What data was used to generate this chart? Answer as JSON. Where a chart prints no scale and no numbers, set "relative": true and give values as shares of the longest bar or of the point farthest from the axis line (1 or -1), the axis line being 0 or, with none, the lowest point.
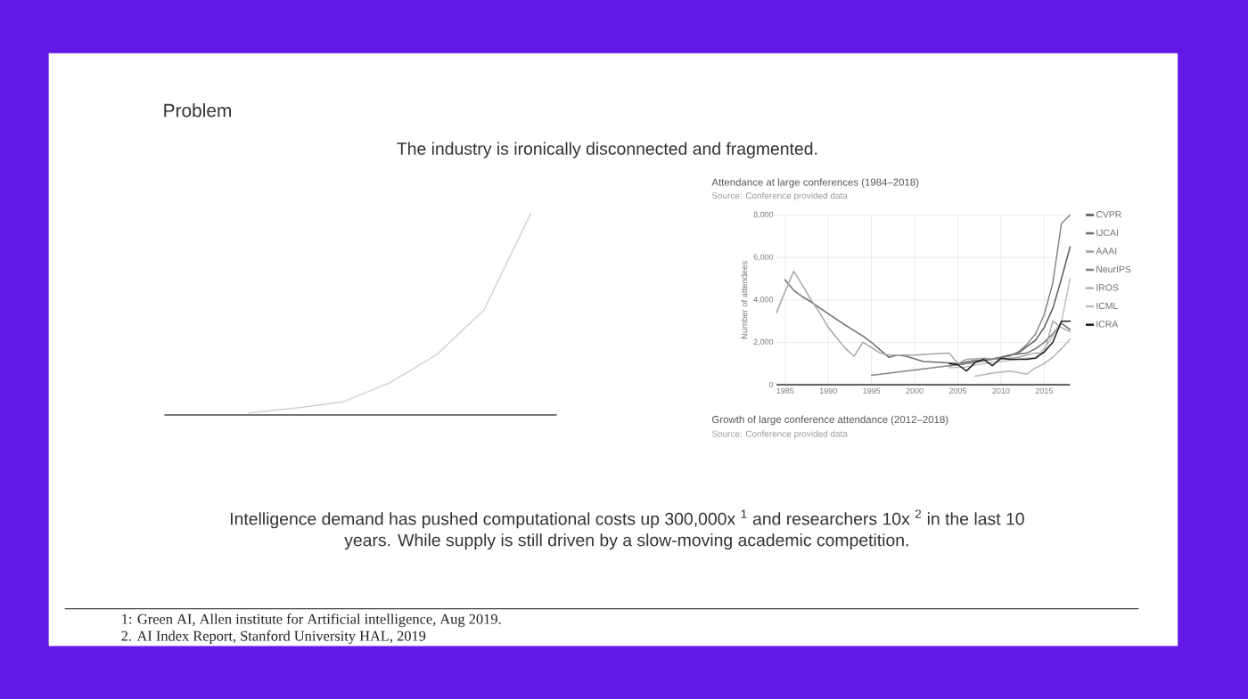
{
  "chart_data": [
    {
      "type": "other",
      "title": "Problem",
      "subtitle": "The industry is ironically disconnected and fragmented."
    },
    {
      "type": "line",
      "relative": true,
      "categories": [
        null,
        null,
        null,
        null,
        null,
        null,
        null,
        null
      ],
      "values": [
        null,
        0.01,
        0.035,
        0.065,
        0.16,
        0.3,
        0.52,
        1
      ],
      "color": "#d2d2d2"
    },
    {
      "type": "line",
      "title": "Attendance at large conferences (1984–2018)",
      "subtitle": "Source: Conference provided data",
      "ylabel": "Number of attendees",
      "xlim": [
        1984,
        2018
      ],
      "xticks": [
        1985,
        1990,
        1995,
        2000,
        2005,
        2010,
        2015
      ],
      "ylim": [
        0,
        8000
      ],
      "yticks": [
        0,
        {
          "value": 2000,
          "label": "2,000"
        },
        {
          "value": 4000,
          "label": "4,000"
        },
        {
          "value": 6000,
          "label": "6,000"
        },
        {
          "value": 8000,
          "label": "8,000"
        }
      ],
      "grid": true,
      "legend": "right",
      "series": [
        {
          "name": "CVPR",
          "color": "#595959",
          "x": [
            2004,
            2006,
            2008,
            2010,
            2012,
            2013,
            2014,
            2015,
            2016,
            2017,
            2018
          ],
          "values": [
            900,
            1000,
            1150,
            1300,
            1500,
            1800,
            2100,
            2700,
            3600,
            5000,
            6500
          ]
        },
        {
          "name": "IJCAI",
          "color": "#6e6e6e",
          "x": [
            1985,
            1986,
            1987,
            1988,
            1990,
            1992,
            1994,
            1995,
            1996,
            1997,
            1998,
            1999,
            2001,
            2003,
            2005,
            2007,
            2009,
            2011,
            2013,
            2014,
            2015,
            2016,
            2017,
            2018
          ],
          "values": [
            4950,
            4450,
            4150,
            3900,
            3350,
            2800,
            2300,
            2000,
            1650,
            1300,
            1400,
            1350,
            1100,
            1050,
            1000,
            1150,
            1200,
            1400,
            1500,
            1700,
            2000,
            2400,
            2900,
            2600
          ]
        },
        {
          "name": "AAAI",
          "color": "#a6a6a6",
          "x": [
            1984,
            1985,
            1986,
            1987,
            1988,
            1989,
            1990,
            1991,
            1992,
            1993,
            1994,
            1995,
            1996,
            1997,
            1998,
            2000,
            2002,
            2004,
            2005,
            2006,
            2008,
            2010,
            2012,
            2014,
            2015,
            2016,
            2017,
            2018
          ],
          "values": [
            3400,
            4400,
            5350,
            4700,
            4000,
            3400,
            2700,
            2200,
            1700,
            1350,
            2000,
            1750,
            1500,
            1400,
            1400,
            1400,
            1450,
            1500,
            1000,
            1200,
            1250,
            1200,
            1300,
            1500,
            1500,
            3000,
            2700,
            2500
          ]
        },
        {
          "name": "NeurIPS",
          "color": "#858585",
          "x": [
            1995,
            2000,
            2005,
            2007,
            2009,
            2011,
            2012,
            2013,
            2014,
            2015,
            2016,
            2017,
            2018
          ],
          "values": [
            450,
            700,
            950,
            1050,
            1200,
            1350,
            1550,
            1900,
            2400,
            3300,
            4800,
            7600,
            8000
          ]
        },
        {
          "name": "IROS",
          "color": "#b5b5b5",
          "x": [
            2007,
            2009,
            2011,
            2013,
            2014,
            2015,
            2016,
            2017,
            2018
          ],
          "values": [
            400,
            550,
            650,
            500,
            800,
            1000,
            1300,
            1700,
            2150
          ]
        },
        {
          "name": "ICML",
          "color": "#bfbfbf",
          "x": [
            2004,
            2006,
            2008,
            2010,
            2012,
            2014,
            2015,
            2016,
            2017,
            2018
          ],
          "values": [
            800,
            850,
            1000,
            1100,
            1200,
            1300,
            1700,
            2300,
            2950,
            5000
          ]
        },
        {
          "name": "ICRA",
          "color": "#1f1f1f",
          "x": [
            2004,
            2005,
            2006,
            2007,
            2008,
            2009,
            2010,
            2011,
            2012,
            2013,
            2014,
            2015,
            2016,
            2017,
            2018
          ],
          "values": [
            1000,
            950,
            650,
            1050,
            1200,
            900,
            1250,
            1200,
            1200,
            1200,
            1250,
            1550,
            2000,
            3000,
            3000
          ]
        }
      ],
      "annotations": [
        "Growth of large conference attendance (2012–2018)",
        "Source: Conference provided data"
      ]
    },
    {
      "type": "other",
      "annotations": [
        "Intelligence demand has pushed computational costs up 300,000x $^{1}$ and researchers 10x $^{2}$ in the last 10 years. While supply is still driven by a slow-moving academic competition.",
        "1: Green AI, Allen institute for Artificial intelligence, Aug 2019.",
        "2. AI Index Report, Stanford University HAL, 2019"
      ]
    }
  ]
}
